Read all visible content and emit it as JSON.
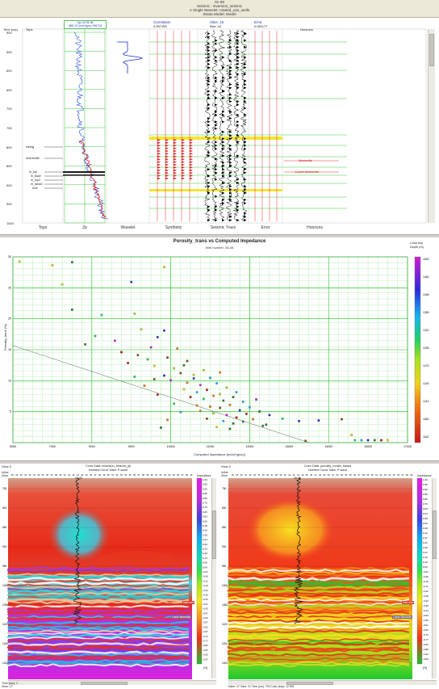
{
  "window": {
    "title_lines": [
      "01-08",
      "Seismic : inversion_seismic",
      "A Single Wavelet: rotated_use_wells",
      "Strata Model: Model"
    ]
  },
  "well_panel": {
    "time_label": "Time (ms)",
    "tops_header": "Tops",
    "zp_header_line1": "Zp=1178.38",
    "zp_header_line2": "4692.47 (m/s)*(g/cc) 19673.8",
    "correlation_label": "Correlation",
    "correlation_value": "0.997155",
    "xline_label": "Xline: 15",
    "iline_label": "Iline: 42",
    "error_label": "Error",
    "error_value": "0.081177",
    "horizons_header": "Horizons",
    "time_ticks": [
      "500",
      "550",
      "600",
      "650",
      "700",
      "750",
      "800",
      "850",
      "900",
      "950",
      "1000"
    ],
    "tops": [
      "viking",
      "mannville",
      "rh_top",
      "rh_base",
      "rh_top2",
      "rh_base2",
      "mne"
    ],
    "horizon_labels": [
      "Mannville",
      "Lower Mannville"
    ],
    "track_labels": [
      "Tops",
      "Zp",
      "Wavelet",
      "Synthetic",
      "Seismic Trace",
      "Error",
      "Horizons"
    ]
  },
  "crossplot": {
    "title": "Porosity_trans vs Computed Impedance",
    "subtitle": "Well number: 08-08",
    "ylabel": "Porosity_trans (%)",
    "xlabel": "Computed Impedance ((m/s)*(g/cc))",
    "colorbar_title": "Color key",
    "colorbar_subtitle": "Depth (m)",
    "colorbar_ticks": [
      "1520",
      "1462",
      "1406",
      "1350",
      "1322",
      "1290",
      "1270",
      "1240",
      "1210",
      "1180",
      "1162"
    ],
    "x_ticks": [
      "5000",
      "7000",
      "9000",
      "9000",
      "10000",
      "11000",
      "12000",
      "13000",
      "14000",
      "15000",
      "17000"
    ],
    "y_ticks": [
      "30",
      "25",
      "20",
      "15",
      "10",
      "5"
    ]
  },
  "chart_data": {
    "type": "scatter",
    "title": "Porosity_trans vs Computed Impedance",
    "subtitle": "Well number: 08-08",
    "xlabel": "Computed Impedance ((m/s)*(g/cc))",
    "ylabel": "Porosity_trans (%)",
    "xlim": [
      5000,
      17000
    ],
    "ylim": [
      0,
      31
    ],
    "grid": true,
    "regression_line": {
      "x": [
        5000,
        14000
      ],
      "y": [
        16.2,
        0
      ]
    },
    "points": [
      {
        "x": 5200,
        "y": 30.2
      },
      {
        "x": 6200,
        "y": 29.6
      },
      {
        "x": 6800,
        "y": 30.1
      },
      {
        "x": 6500,
        "y": 26.4
      },
      {
        "x": 8600,
        "y": 26.8
      },
      {
        "x": 9600,
        "y": 29.3
      },
      {
        "x": 6800,
        "y": 22.2
      },
      {
        "x": 7700,
        "y": 21.3
      },
      {
        "x": 8700,
        "y": 21.5
      },
      {
        "x": 7500,
        "y": 17.8
      },
      {
        "x": 7200,
        "y": 16.4
      },
      {
        "x": 8100,
        "y": 17.0
      },
      {
        "x": 8900,
        "y": 18.9
      },
      {
        "x": 9400,
        "y": 17.6
      },
      {
        "x": 9600,
        "y": 18.7
      },
      {
        "x": 8300,
        "y": 15.1
      },
      {
        "x": 8800,
        "y": 14.6
      },
      {
        "x": 9200,
        "y": 15.9
      },
      {
        "x": 9700,
        "y": 14.2
      },
      {
        "x": 10000,
        "y": 15.7
      },
      {
        "x": 9300,
        "y": 12.8
      },
      {
        "x": 9900,
        "y": 12.4
      },
      {
        "x": 10300,
        "y": 13.6
      },
      {
        "x": 9600,
        "y": 11.2
      },
      {
        "x": 10100,
        "y": 11.6
      },
      {
        "x": 10500,
        "y": 11.3
      },
      {
        "x": 10800,
        "y": 12.1
      },
      {
        "x": 9800,
        "y": 10.4
      },
      {
        "x": 10300,
        "y": 10.0
      },
      {
        "x": 10700,
        "y": 9.6
      },
      {
        "x": 11000,
        "y": 10.8
      },
      {
        "x": 11200,
        "y": 9.9
      },
      {
        "x": 10200,
        "y": 8.9
      },
      {
        "x": 10600,
        "y": 8.4
      },
      {
        "x": 10900,
        "y": 8.8
      },
      {
        "x": 11300,
        "y": 8.1
      },
      {
        "x": 11500,
        "y": 9.2
      },
      {
        "x": 10400,
        "y": 7.6
      },
      {
        "x": 10800,
        "y": 7.3
      },
      {
        "x": 11100,
        "y": 7.8
      },
      {
        "x": 11400,
        "y": 7.0
      },
      {
        "x": 11700,
        "y": 7.6
      },
      {
        "x": 12000,
        "y": 6.8
      },
      {
        "x": 10600,
        "y": 6.2
      },
      {
        "x": 11000,
        "y": 6.0
      },
      {
        "x": 11300,
        "y": 5.8
      },
      {
        "x": 11600,
        "y": 6.3
      },
      {
        "x": 11900,
        "y": 5.4
      },
      {
        "x": 12200,
        "y": 5.9
      },
      {
        "x": 11100,
        "y": 4.9
      },
      {
        "x": 11500,
        "y": 4.6
      },
      {
        "x": 11800,
        "y": 4.2
      },
      {
        "x": 12100,
        "y": 4.8
      },
      {
        "x": 12500,
        "y": 5.2
      },
      {
        "x": 12800,
        "y": 4.6
      },
      {
        "x": 10900,
        "y": 4.0
      },
      {
        "x": 11400,
        "y": 3.6
      },
      {
        "x": 11700,
        "y": 3.2
      },
      {
        "x": 12000,
        "y": 3.5
      },
      {
        "x": 12300,
        "y": 3.9
      },
      {
        "x": 11200,
        "y": 2.6
      },
      {
        "x": 11600,
        "y": 2.3
      },
      {
        "x": 12600,
        "y": 2.8
      },
      {
        "x": 9500,
        "y": 2.5
      },
      {
        "x": 9700,
        "y": 3.8
      },
      {
        "x": 9900,
        "y": 6.5
      },
      {
        "x": 10100,
        "y": 5.1
      },
      {
        "x": 9400,
        "y": 8.0
      },
      {
        "x": 9000,
        "y": 9.5
      },
      {
        "x": 8700,
        "y": 11.0
      },
      {
        "x": 8500,
        "y": 13.3
      },
      {
        "x": 9100,
        "y": 13.9
      },
      {
        "x": 12700,
        "y": 3.0
      },
      {
        "x": 13200,
        "y": 4.0
      },
      {
        "x": 13700,
        "y": 3.6
      },
      {
        "x": 14300,
        "y": 3.7
      },
      {
        "x": 15000,
        "y": 3.9
      },
      {
        "x": 15300,
        "y": 1.3
      },
      {
        "x": 13900,
        "y": 0.3
      },
      {
        "x": 15600,
        "y": 0.4
      },
      {
        "x": 15800,
        "y": 0.4
      },
      {
        "x": 16000,
        "y": 0.4
      },
      {
        "x": 16200,
        "y": 0.4
      },
      {
        "x": 16400,
        "y": 0.4
      },
      {
        "x": 15400,
        "y": 0.4
      },
      {
        "x": 10500,
        "y": 10.7
      },
      {
        "x": 11800,
        "y": 8.4
      },
      {
        "x": 12400,
        "y": 7.2
      },
      {
        "x": 10200,
        "y": 12.9
      },
      {
        "x": 9300,
        "y": 10.6
      },
      {
        "x": 10700,
        "y": 5.3
      },
      {
        "x": 11300,
        "y": 11.7
      }
    ]
  },
  "section_left": {
    "view_label": "View 3",
    "color_data_line1": "Color Data: inversion_seismic_jiji",
    "color_data_line2": "Inserted Curve Data: P-wave",
    "well_label": "08-08",
    "inline_label": "Inline",
    "xline_label": "Xline",
    "xline_ticks": [
      "25",
      "26",
      "30",
      "31",
      "32",
      "33",
      "34",
      "35",
      "36",
      "37",
      "38",
      "39",
      "40",
      "41",
      "42",
      "43",
      "44",
      "45",
      "46",
      "47",
      "48",
      "49",
      "50",
      "51",
      "52",
      "53",
      "54",
      "55",
      "56",
      "57",
      "58",
      "59",
      "60",
      "61",
      "62",
      "63",
      "64",
      "65",
      "66",
      "67",
      "68",
      "69"
    ],
    "time_ticks": [
      "750",
      "800",
      "850",
      "900",
      "950",
      "1000",
      "1050",
      "1100",
      "1150",
      "1200"
    ],
    "horizon_labels": [
      "Mannville",
      "Lower Mannville"
    ],
    "colorbar_title": "Impedance",
    "colorbar_unit": "[%]",
    "colorbar_ticks": [
      "1.00",
      "0.95",
      "0.90",
      "0.85",
      "0.80",
      "0.75",
      "0.70",
      "0.65",
      "0.59",
      "0.54",
      "0.49",
      "0.44",
      "0.39",
      "0.34",
      "0.29",
      "0.24",
      "0.19",
      "0.14",
      "0.09",
      "0.04",
      "-0.01",
      "-0.06",
      "-0.11",
      "-0.16",
      "-0.21",
      "-0.26",
      "-0.31",
      "-0.37",
      "-0.42",
      "-0.47",
      "-0.52",
      "-0.57",
      "-0.62",
      "-0.67",
      "-0.72",
      "-0.77",
      "-0.82",
      "-0.87",
      "-0.92",
      "-0.97"
    ],
    "status": "Time (ms): 1",
    "status2": "Xline: 27"
  },
  "section_right": {
    "view_label": "View 2",
    "color_data_line1": "Color Data: porosity_model_based",
    "color_data_line2": "Inserted Curve Data: P-wave",
    "well_label": "08-08",
    "inline_label": "Inline",
    "xline_label": "Xline",
    "time_ticks": [
      "750",
      "800",
      "850",
      "900",
      "950",
      "1000",
      "1050",
      "1100",
      "1150",
      "1200"
    ],
    "horizon_labels": [
      "Mannville",
      "Lower Mannville"
    ],
    "colorbar_title": "Impedance",
    "colorbar_unit": "[%]",
    "colorbar_ticks": [
      "1.00",
      "0.95",
      "0.90",
      "0.85",
      "0.80",
      "0.75",
      "0.69",
      "0.64",
      "0.58",
      "0.53",
      "0.48",
      "0.42",
      "0.37",
      "0.31",
      "0.26",
      "0.21",
      "0.16",
      "0.10",
      "0.05",
      "-0.01",
      "-0.06",
      "-0.12",
      "-0.17",
      "-0.22",
      "-0.28",
      "-0.34",
      "-0.39",
      "-0.44",
      "-0.50",
      "-0.55",
      "-0.61",
      "-0.66",
      "-0.72",
      "-0.77",
      "-0.83",
      "-0.88",
      "-0.94",
      "-0.99"
    ],
    "status": "Inline: 27   Xline: 21   Time (ms): 790   Color (tmp): 12.591"
  }
}
